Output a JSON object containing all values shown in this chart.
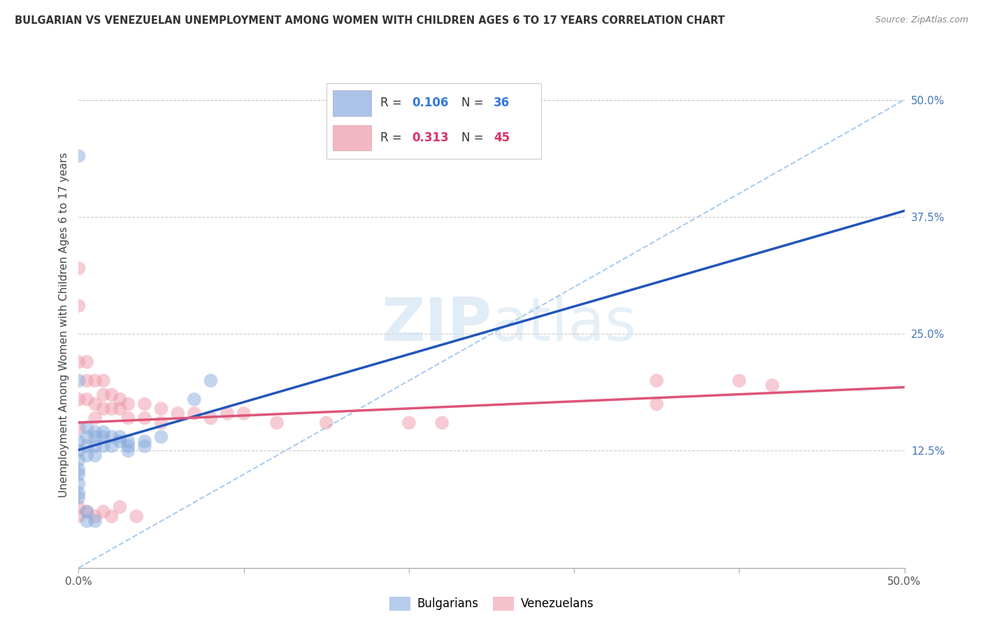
{
  "title": "BULGARIAN VS VENEZUELAN UNEMPLOYMENT AMONG WOMEN WITH CHILDREN AGES 6 TO 17 YEARS CORRELATION CHART",
  "source": "Source: ZipAtlas.com",
  "ylabel": "Unemployment Among Women with Children Ages 6 to 17 years",
  "xlim": [
    0.0,
    0.5
  ],
  "ylim": [
    0.0,
    0.52
  ],
  "ytick_vals_right": [
    0.125,
    0.25,
    0.375,
    0.5
  ],
  "ytick_labels_right": [
    "12.5%",
    "25.0%",
    "37.5%",
    "50.0%"
  ],
  "bg_color": "#ffffff",
  "grid_color": "#cccccc",
  "bulgarian_color": "#88aadd",
  "venezuelan_color": "#ee99aa",
  "bulgarian_line_color": "#2255bb",
  "venezuelan_line_color": "#dd5577",
  "diag_line_color": "#aaccee",
  "legend_R_color_bul": "#3377dd",
  "legend_R_color_ven": "#dd3366",
  "watermark_color": "#cce0f0",
  "bulgarian_x": [
    0.0,
    0.0,
    0.0,
    0.0,
    0.0,
    0.0,
    0.0,
    0.0,
    0.005,
    0.005,
    0.005,
    0.005,
    0.01,
    0.01,
    0.01,
    0.01,
    0.015,
    0.015,
    0.015,
    0.02,
    0.02,
    0.025,
    0.025,
    0.03,
    0.03,
    0.03,
    0.04,
    0.04,
    0.05,
    0.07,
    0.08,
    0.0,
    0.0,
    0.005,
    0.005,
    0.01
  ],
  "bulgarian_y": [
    0.135,
    0.125,
    0.115,
    0.105,
    0.1,
    0.09,
    0.08,
    0.075,
    0.15,
    0.14,
    0.13,
    0.12,
    0.145,
    0.14,
    0.13,
    0.12,
    0.145,
    0.14,
    0.13,
    0.14,
    0.13,
    0.14,
    0.135,
    0.135,
    0.13,
    0.125,
    0.135,
    0.13,
    0.14,
    0.18,
    0.2,
    0.44,
    0.2,
    0.06,
    0.05,
    0.05
  ],
  "venezuelan_x": [
    0.0,
    0.0,
    0.0,
    0.0,
    0.0,
    0.005,
    0.005,
    0.005,
    0.01,
    0.01,
    0.01,
    0.015,
    0.015,
    0.015,
    0.02,
    0.02,
    0.025,
    0.025,
    0.03,
    0.03,
    0.04,
    0.04,
    0.05,
    0.05,
    0.06,
    0.07,
    0.08,
    0.09,
    0.1,
    0.12,
    0.15,
    0.2,
    0.22,
    0.35,
    0.35,
    0.4,
    0.42,
    0.0,
    0.0,
    0.005,
    0.01,
    0.015,
    0.02,
    0.025,
    0.035
  ],
  "venezuelan_y": [
    0.32,
    0.28,
    0.22,
    0.18,
    0.15,
    0.22,
    0.2,
    0.18,
    0.2,
    0.175,
    0.16,
    0.2,
    0.185,
    0.17,
    0.185,
    0.17,
    0.18,
    0.17,
    0.175,
    0.16,
    0.175,
    0.16,
    0.17,
    0.155,
    0.165,
    0.165,
    0.16,
    0.165,
    0.165,
    0.155,
    0.155,
    0.155,
    0.155,
    0.2,
    0.175,
    0.2,
    0.195,
    0.065,
    0.055,
    0.06,
    0.055,
    0.06,
    0.055,
    0.065,
    0.055
  ]
}
